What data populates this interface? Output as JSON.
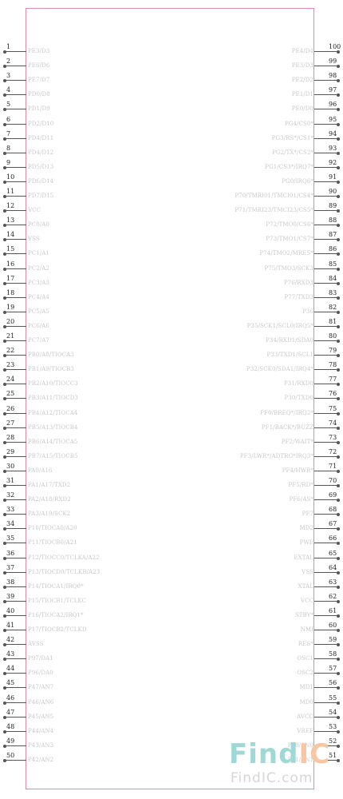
{
  "component": {
    "left_pins": [
      {
        "num": "1",
        "name": "PE3/D3"
      },
      {
        "num": "2",
        "name": "PE6/D6"
      },
      {
        "num": "3",
        "name": "PE7/D7"
      },
      {
        "num": "4",
        "name": "PD0/D8"
      },
      {
        "num": "5",
        "name": "PD1/D9"
      },
      {
        "num": "6",
        "name": "PD2/D10"
      },
      {
        "num": "7",
        "name": "PD4/D11"
      },
      {
        "num": "8",
        "name": "PD4/D12"
      },
      {
        "num": "9",
        "name": "PD5/D13"
      },
      {
        "num": "10",
        "name": "PD6/D14"
      },
      {
        "num": "11",
        "name": "PD7/D15"
      },
      {
        "num": "12",
        "name": "VCC"
      },
      {
        "num": "13",
        "name": "PC0/A0"
      },
      {
        "num": "14",
        "name": "VSS"
      },
      {
        "num": "15",
        "name": "PC1/A1"
      },
      {
        "num": "16",
        "name": "PC2/A2"
      },
      {
        "num": "17",
        "name": "PC3/A3"
      },
      {
        "num": "18",
        "name": "PC4/A4"
      },
      {
        "num": "19",
        "name": "PC5/A5"
      },
      {
        "num": "20",
        "name": "PC6/A6"
      },
      {
        "num": "21",
        "name": "PC7/A7"
      },
      {
        "num": "22",
        "name": "PB0/A8/TIOCA3"
      },
      {
        "num": "23",
        "name": "PB1/A9/TIOCB3"
      },
      {
        "num": "24",
        "name": "PB2/A10/TIOCC3"
      },
      {
        "num": "25",
        "name": "PB3/A11/TIOCD3"
      },
      {
        "num": "26",
        "name": "PB4/A12/TIOCA4"
      },
      {
        "num": "27",
        "name": "PB5/A13/TIOCB4"
      },
      {
        "num": "28",
        "name": "PB6/A14/TIOCA5"
      },
      {
        "num": "29",
        "name": "PB7/A15/TIOCB5"
      },
      {
        "num": "30",
        "name": "PA0/A16"
      },
      {
        "num": "31",
        "name": "PA1/A17/TXD2"
      },
      {
        "num": "32",
        "name": "PA2/A18/RXD2"
      },
      {
        "num": "33",
        "name": "PA3/A19/SCK2"
      },
      {
        "num": "34",
        "name": "P10/TIOCA0/A20"
      },
      {
        "num": "35",
        "name": "P11/TIOCB0/A21"
      },
      {
        "num": "36",
        "name": "P12/TIOCC0/TCLKA/A22"
      },
      {
        "num": "37",
        "name": "P13/TIOCD0/TCLKB/A23"
      },
      {
        "num": "38",
        "name": "P14/TIOCA1/IRQ0*"
      },
      {
        "num": "39",
        "name": "P15/TIOCB1/TCLKC"
      },
      {
        "num": "40",
        "name": "P16/TIOCA2/IRQ1*"
      },
      {
        "num": "41",
        "name": "P17/TIOCB2/TCLKD"
      },
      {
        "num": "42",
        "name": "AVSS"
      },
      {
        "num": "43",
        "name": "P97/DA1"
      },
      {
        "num": "44",
        "name": "P96/DA0"
      },
      {
        "num": "45",
        "name": "P47/AN7"
      },
      {
        "num": "46",
        "name": "P46/AN6"
      },
      {
        "num": "47",
        "name": "P45/AN5"
      },
      {
        "num": "48",
        "name": "P44/AN4"
      },
      {
        "num": "49",
        "name": "P43/AN3"
      },
      {
        "num": "50",
        "name": "P42/AN2"
      }
    ],
    "right_pins": [
      {
        "num": "100",
        "name": "PE4/D4"
      },
      {
        "num": "99",
        "name": "PE3/D3"
      },
      {
        "num": "98",
        "name": "PE2/D2"
      },
      {
        "num": "97",
        "name": "PE1/D1"
      },
      {
        "num": "96",
        "name": "PE0/D0"
      },
      {
        "num": "95",
        "name": "PG4/CS0*"
      },
      {
        "num": "94",
        "name": "PG3/RS*/CS1*"
      },
      {
        "num": "93",
        "name": "PG2/TX*/CS2*"
      },
      {
        "num": "92",
        "name": "PG1/CS3*/IRQ7*"
      },
      {
        "num": "91",
        "name": "PG0/IRQ6*"
      },
      {
        "num": "90",
        "name": "P70/TMRI01/TMCI01/CS4*"
      },
      {
        "num": "89",
        "name": "P71/TMRI23/TMCI23/CS5*"
      },
      {
        "num": "88",
        "name": "P72/TMO0/CS6*"
      },
      {
        "num": "87",
        "name": "P73/TMO1/CS7*"
      },
      {
        "num": "86",
        "name": "P74/TMO2/MRES*"
      },
      {
        "num": "85",
        "name": "P75/TMO3/SCK3"
      },
      {
        "num": "84",
        "name": "P76/RXD3"
      },
      {
        "num": "83",
        "name": "P77/TXD3"
      },
      {
        "num": "82",
        "name": "P36"
      },
      {
        "num": "81",
        "name": "P35/SCK1/SCL0/IRQ5*"
      },
      {
        "num": "80",
        "name": "P34/RXD1/SDA0"
      },
      {
        "num": "79",
        "name": "P33/TXD1/SCL1"
      },
      {
        "num": "78",
        "name": "P32/SCK0/SDA1/IRQ4*"
      },
      {
        "num": "77",
        "name": "P31/RXD0"
      },
      {
        "num": "76",
        "name": "P30/TXD0"
      },
      {
        "num": "75",
        "name": "PF0/BREQ*/IRQ2*"
      },
      {
        "num": "74",
        "name": "PF1/BACK*/BUZZ"
      },
      {
        "num": "73",
        "name": "PF2/WAIT*"
      },
      {
        "num": "72",
        "name": "PF3/LWR*/ADTRG*IRQ3*"
      },
      {
        "num": "71",
        "name": "PF4/HWR*"
      },
      {
        "num": "70",
        "name": "PF5/RD*"
      },
      {
        "num": "69",
        "name": "PF6/AS*"
      },
      {
        "num": "68",
        "name": "PF7"
      },
      {
        "num": "67",
        "name": "MD2"
      },
      {
        "num": "66",
        "name": "PWE"
      },
      {
        "num": "65",
        "name": "EXTAL"
      },
      {
        "num": "64",
        "name": "VSS"
      },
      {
        "num": "63",
        "name": "XTAL"
      },
      {
        "num": "62",
        "name": "VCC"
      },
      {
        "num": "61",
        "name": "STBY*"
      },
      {
        "num": "60",
        "name": "NMI"
      },
      {
        "num": "59",
        "name": "RES*"
      },
      {
        "num": "58",
        "name": "OSC1"
      },
      {
        "num": "57",
        "name": "OSC2"
      },
      {
        "num": "56",
        "name": "MD1"
      },
      {
        "num": "55",
        "name": "MD0"
      },
      {
        "num": "54",
        "name": "AVCC"
      },
      {
        "num": "53",
        "name": "VREF"
      },
      {
        "num": "52",
        "name": "P40/AN0"
      },
      {
        "num": "51",
        "name": "P41/AN1"
      }
    ]
  },
  "watermark": {
    "logo_part1": "Find",
    "logo_part2": "IC",
    "url": "FindIC.com"
  },
  "colors": {
    "body_border": "#e08aa6",
    "pin": "#555555",
    "pin_name": "#c8c8c8",
    "watermark_teal": "#9fd8d4",
    "watermark_orange": "#f6c7a2"
  }
}
